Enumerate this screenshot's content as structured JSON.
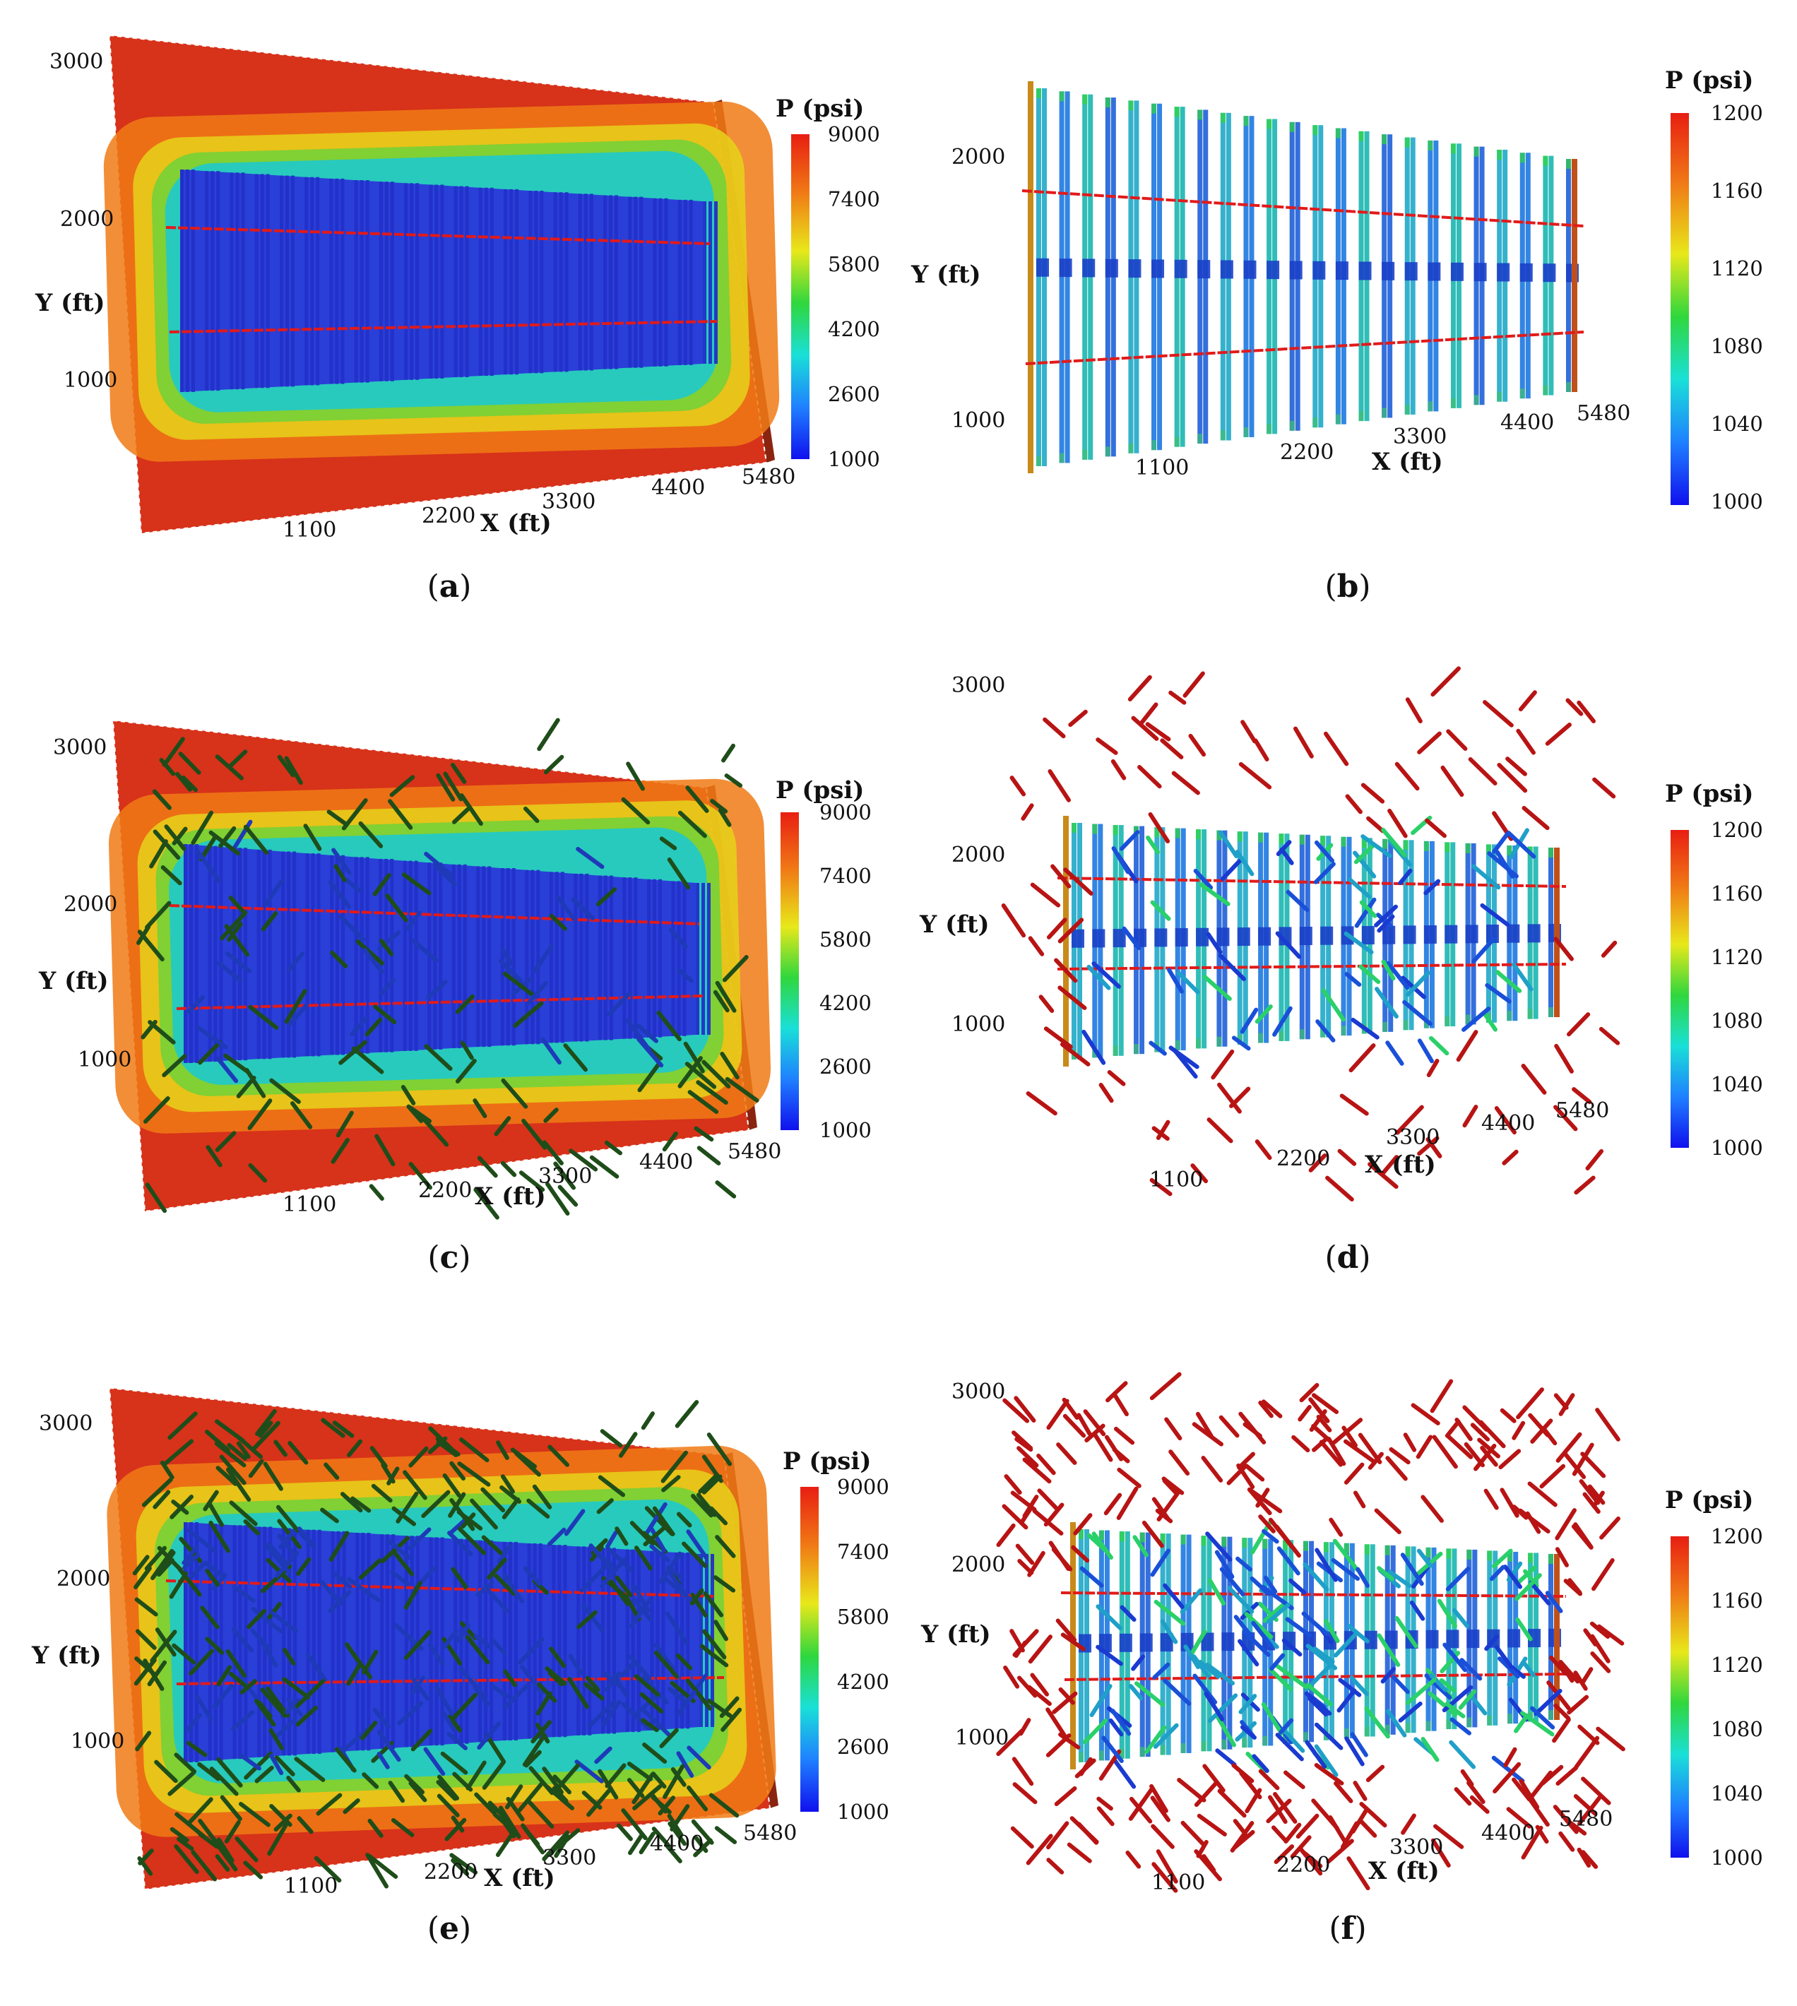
{
  "colorbar_colors": [
    "#1010ee",
    "#1f80ff",
    "#19e0d8",
    "#2fd73d",
    "#e8e81a",
    "#f07a15",
    "#e81e12"
  ],
  "colors": {
    "reservoir_hot": "#d7321a",
    "reservoir_edge": "#8a2410",
    "fracture_blue": "#2230c8",
    "well_red": "#e21a1a",
    "natural_frac_dark": "#1f4d1a",
    "natural_frac_red": "#b81414"
  },
  "panels": [
    {
      "caption": "a",
      "kind": "reservoir",
      "natural_density": 0,
      "y_ticks": [
        "3000",
        "2000",
        "1000"
      ],
      "y_label": "Y (ft)",
      "x_ticks": [
        "1100",
        "2200",
        "3300",
        "4400",
        "5480"
      ],
      "x_label": "X (ft)",
      "colorbar": {
        "title": "P (psi)",
        "ticks": [
          "9000",
          "7400",
          "5800",
          "4200",
          "2600",
          "1000"
        ]
      }
    },
    {
      "caption": "b",
      "kind": "fractures",
      "natural_density": 0,
      "y_ticks": [
        "2000",
        "1000"
      ],
      "y_label": "Y (ft)",
      "x_ticks": [
        "1100",
        "2200",
        "3300",
        "4400",
        "5480"
      ],
      "x_label": "X (ft)",
      "colorbar": {
        "title": "P (psi)",
        "ticks": [
          "1200",
          "1160",
          "1120",
          "1080",
          "1040",
          "1000"
        ]
      }
    },
    {
      "caption": "c",
      "kind": "reservoir",
      "natural_density": 1,
      "y_ticks": [
        "3000",
        "2000",
        "1000"
      ],
      "y_label": "Y (ft)",
      "x_ticks": [
        "1100",
        "2200",
        "3300",
        "4400",
        "5480"
      ],
      "x_label": "X (ft)",
      "colorbar": {
        "title": "P (psi)",
        "ticks": [
          "9000",
          "7400",
          "5800",
          "4200",
          "2600",
          "1000"
        ]
      }
    },
    {
      "caption": "d",
      "kind": "fractures",
      "natural_density": 1,
      "y_ticks": [
        "3000",
        "2000",
        "1000"
      ],
      "y_label": "Y (ft)",
      "x_ticks": [
        "1100",
        "2200",
        "3300",
        "4400",
        "5480"
      ],
      "x_label": "X (ft)",
      "colorbar": {
        "title": "P (psi)",
        "ticks": [
          "1200",
          "1160",
          "1120",
          "1080",
          "1040",
          "1000"
        ]
      }
    },
    {
      "caption": "e",
      "kind": "reservoir",
      "natural_density": 2,
      "y_ticks": [
        "3000",
        "2000",
        "1000"
      ],
      "y_label": "Y (ft)",
      "x_ticks": [
        "1100",
        "2200",
        "3300",
        "4400",
        "5480"
      ],
      "x_label": "X (ft)",
      "colorbar": {
        "title": "P (psi)",
        "ticks": [
          "9000",
          "7400",
          "5800",
          "4200",
          "2600",
          "1000"
        ]
      }
    },
    {
      "caption": "f",
      "kind": "fractures",
      "natural_density": 2,
      "y_ticks": [
        "3000",
        "2000",
        "1000"
      ],
      "y_label": "Y (ft)",
      "x_ticks": [
        "1100",
        "2200",
        "3300",
        "4400",
        "5480"
      ],
      "x_label": "X (ft)",
      "colorbar": {
        "title": "P (psi)",
        "ticks": [
          "1200",
          "1160",
          "1120",
          "1080",
          "1040",
          "1000"
        ]
      }
    }
  ]
}
